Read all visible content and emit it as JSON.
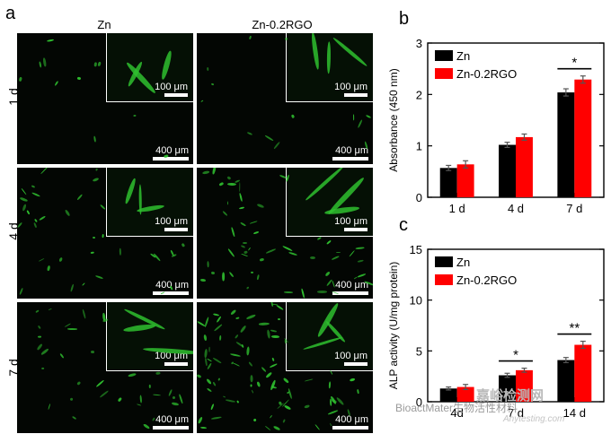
{
  "panels": {
    "a": "a",
    "b": "b",
    "c": "c"
  },
  "micrographs": {
    "columns": [
      "Zn",
      "Zn-0.2RGO"
    ],
    "rows": [
      "1 d",
      "4 d",
      "7 d"
    ],
    "scalebar_main": "400 μm",
    "scalebar_inset": "100 μm"
  },
  "watermark": {
    "line1": "BioactMater生物活性材料",
    "line2": "Anytesting.com",
    "brand": "嘉峪检测网"
  },
  "chart_data": [
    {
      "id": "b",
      "type": "bar",
      "ylabel": "Absorbance (450 nm)",
      "ylim": [
        0,
        3
      ],
      "yticks": [
        0,
        1,
        2,
        3
      ],
      "categories": [
        "1 d",
        "4 d",
        "7 d"
      ],
      "series": [
        {
          "name": "Zn",
          "color": "#000000",
          "values": [
            0.57,
            1.02,
            2.04
          ],
          "errors": [
            0.05,
            0.05,
            0.07
          ]
        },
        {
          "name": "Zn-0.2RGO",
          "color": "#ff0000",
          "values": [
            0.64,
            1.17,
            2.29
          ],
          "errors": [
            0.07,
            0.06,
            0.07
          ]
        }
      ],
      "significance": [
        {
          "category": 2,
          "label": "*"
        }
      ],
      "legend": "top-left"
    },
    {
      "id": "c",
      "type": "bar",
      "ylabel": "ALP activity (U/mg protein)",
      "ylim": [
        0,
        15
      ],
      "yticks": [
        0,
        5,
        10,
        15
      ],
      "categories": [
        "4d",
        "7 d",
        "14 d"
      ],
      "series": [
        {
          "name": "Zn",
          "color": "#000000",
          "values": [
            1.3,
            2.6,
            4.1
          ],
          "errors": [
            0.15,
            0.2,
            0.25
          ]
        },
        {
          "name": "Zn-0.2RGO",
          "color": "#ff0000",
          "values": [
            1.45,
            3.1,
            5.6
          ],
          "errors": [
            0.25,
            0.2,
            0.35
          ]
        }
      ],
      "significance": [
        {
          "category": 1,
          "label": "*"
        },
        {
          "category": 2,
          "label": "**"
        }
      ],
      "legend": "top-left"
    }
  ]
}
